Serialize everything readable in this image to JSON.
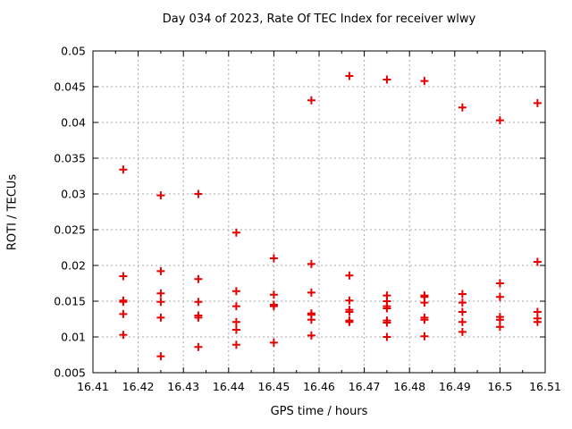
{
  "chart_data": {
    "type": "scatter",
    "title": "Day 034 of 2023, Rate Of TEC Index for receiver wlwy",
    "xlabel": "GPS time / hours",
    "ylabel": "ROTI / TECUs",
    "xlim": [
      16.41,
      16.51
    ],
    "ylim": [
      0.005,
      0.05
    ],
    "grid": true,
    "legend_position": "none",
    "xticks": {
      "values": [
        16.41,
        16.42,
        16.43,
        16.44,
        16.45,
        16.46,
        16.47,
        16.48,
        16.49,
        16.5,
        16.51
      ],
      "labels": [
        "16.41",
        "16.42",
        "16.43",
        "16.44",
        "16.45",
        "16.46",
        "16.47",
        "16.48",
        "16.49",
        "16.5",
        "16.51"
      ],
      "minor_step": 0.005
    },
    "yticks": {
      "values": [
        0.005,
        0.01,
        0.015,
        0.02,
        0.025,
        0.03,
        0.035,
        0.04,
        0.045,
        0.05
      ],
      "labels": [
        "0.005",
        "0.01",
        "0.015",
        "0.02",
        "0.025",
        "0.03",
        "0.035",
        "0.04",
        "0.045",
        "0.05"
      ]
    },
    "series": [
      {
        "name": "ROTI",
        "marker": "plus",
        "points": [
          [
            16.4167,
            0.0334
          ],
          [
            16.4167,
            0.0185
          ],
          [
            16.4167,
            0.0151
          ],
          [
            16.4167,
            0.0149
          ],
          [
            16.4167,
            0.0132
          ],
          [
            16.4167,
            0.0103
          ],
          [
            16.425,
            0.0298
          ],
          [
            16.425,
            0.0192
          ],
          [
            16.425,
            0.0161
          ],
          [
            16.425,
            0.0149
          ],
          [
            16.425,
            0.0127
          ],
          [
            16.425,
            0.0073
          ],
          [
            16.4333,
            0.03
          ],
          [
            16.4333,
            0.0181
          ],
          [
            16.4333,
            0.0149
          ],
          [
            16.4333,
            0.013
          ],
          [
            16.4333,
            0.0127
          ],
          [
            16.4333,
            0.0086
          ],
          [
            16.4417,
            0.0246
          ],
          [
            16.4417,
            0.0164
          ],
          [
            16.4417,
            0.0143
          ],
          [
            16.4417,
            0.0121
          ],
          [
            16.4417,
            0.011
          ],
          [
            16.4417,
            0.0089
          ],
          [
            16.45,
            0.021
          ],
          [
            16.45,
            0.0159
          ],
          [
            16.45,
            0.0145
          ],
          [
            16.45,
            0.0143
          ],
          [
            16.45,
            0.0092
          ],
          [
            16.4583,
            0.0431
          ],
          [
            16.4583,
            0.0202
          ],
          [
            16.4583,
            0.0162
          ],
          [
            16.4583,
            0.0133
          ],
          [
            16.4583,
            0.0131
          ],
          [
            16.4583,
            0.0124
          ],
          [
            16.4583,
            0.0102
          ],
          [
            16.4667,
            0.0465
          ],
          [
            16.4667,
            0.0186
          ],
          [
            16.4667,
            0.0151
          ],
          [
            16.4667,
            0.0138
          ],
          [
            16.4667,
            0.0135
          ],
          [
            16.4667,
            0.0123
          ],
          [
            16.4667,
            0.0121
          ],
          [
            16.475,
            0.046
          ],
          [
            16.475,
            0.0158
          ],
          [
            16.475,
            0.015
          ],
          [
            16.475,
            0.0143
          ],
          [
            16.475,
            0.014
          ],
          [
            16.475,
            0.0123
          ],
          [
            16.475,
            0.012
          ],
          [
            16.475,
            0.01
          ],
          [
            16.4833,
            0.0458
          ],
          [
            16.4833,
            0.0158
          ],
          [
            16.4833,
            0.0156
          ],
          [
            16.4833,
            0.0148
          ],
          [
            16.4833,
            0.0127
          ],
          [
            16.4833,
            0.0124
          ],
          [
            16.4833,
            0.0101
          ],
          [
            16.4917,
            0.0421
          ],
          [
            16.4917,
            0.016
          ],
          [
            16.4917,
            0.0148
          ],
          [
            16.4917,
            0.0135
          ],
          [
            16.4917,
            0.0121
          ],
          [
            16.4917,
            0.0107
          ],
          [
            16.5,
            0.0403
          ],
          [
            16.5,
            0.0175
          ],
          [
            16.5,
            0.0156
          ],
          [
            16.5,
            0.0128
          ],
          [
            16.5,
            0.0124
          ],
          [
            16.5,
            0.0114
          ],
          [
            16.5083,
            0.0427
          ],
          [
            16.5083,
            0.0205
          ],
          [
            16.5083,
            0.0135
          ],
          [
            16.5083,
            0.0126
          ],
          [
            16.5083,
            0.0121
          ]
        ]
      }
    ],
    "colors": {
      "marker": "#e60000",
      "grid": "#a8a8a8",
      "frame": "#000000",
      "background": "#ffffff"
    }
  }
}
